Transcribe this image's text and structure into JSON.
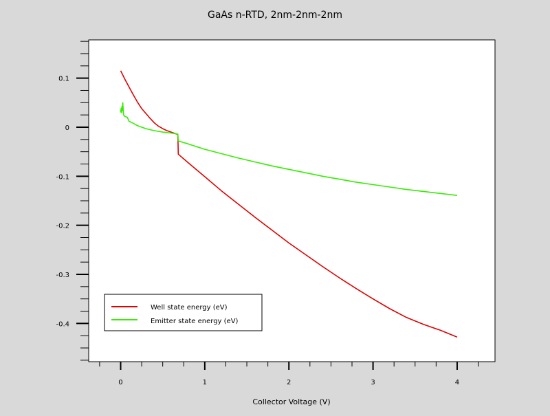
{
  "chart_data": {
    "type": "line",
    "title": "GaAs n-RTD, 2nm-2nm-2nm",
    "xlabel": "Collector Voltage (V)",
    "ylabel": "",
    "xlim": [
      -0.38,
      4.45
    ],
    "ylim": [
      -0.478,
      0.178
    ],
    "x_ticks": [
      0,
      1,
      2,
      3,
      4
    ],
    "x_tick_labels": [
      "0",
      "1",
      "2",
      "3",
      "4"
    ],
    "x_minor_step": 0.25,
    "y_ticks": [
      0.1,
      0,
      -0.1,
      -0.2,
      -0.3,
      -0.4
    ],
    "y_tick_labels": [
      "0.1",
      "0",
      "-0.1",
      "-0.2",
      "-0.3",
      "-0.4"
    ],
    "y_minor_step": 0.025,
    "grid": false,
    "legend_position": "bottom-left",
    "series": [
      {
        "name": "Well state energy (eV)",
        "color": "#e00000",
        "points": [
          [
            0,
            0.115
          ],
          [
            0.05,
            0.098
          ],
          [
            0.1,
            0.082
          ],
          [
            0.15,
            0.066
          ],
          [
            0.2,
            0.051
          ],
          [
            0.25,
            0.038
          ],
          [
            0.3,
            0.028
          ],
          [
            0.35,
            0.018
          ],
          [
            0.4,
            0.009
          ],
          [
            0.45,
            0.002
          ],
          [
            0.5,
            -0.003
          ],
          [
            0.55,
            -0.007
          ],
          [
            0.6,
            -0.01
          ],
          [
            0.65,
            -0.013
          ],
          [
            0.68,
            -0.015
          ],
          [
            0.685,
            -0.055
          ],
          [
            0.8,
            -0.072
          ],
          [
            1.0,
            -0.101
          ],
          [
            1.2,
            -0.13
          ],
          [
            1.4,
            -0.157
          ],
          [
            1.6,
            -0.184
          ],
          [
            1.8,
            -0.21
          ],
          [
            2.0,
            -0.236
          ],
          [
            2.2,
            -0.26
          ],
          [
            2.4,
            -0.284
          ],
          [
            2.6,
            -0.307
          ],
          [
            2.8,
            -0.329
          ],
          [
            3.0,
            -0.35
          ],
          [
            3.2,
            -0.37
          ],
          [
            3.4,
            -0.388
          ],
          [
            3.6,
            -0.402
          ],
          [
            3.8,
            -0.414
          ],
          [
            4.0,
            -0.428
          ]
        ]
      },
      {
        "name": "Emitter state energy (eV)",
        "color": "#33ee00",
        "points": [
          [
            0,
            0.03
          ],
          [
            0.005,
            0.038
          ],
          [
            0.01,
            0.03
          ],
          [
            0.015,
            0.042
          ],
          [
            0.02,
            0.034
          ],
          [
            0.025,
            0.05
          ],
          [
            0.03,
            0.036
          ],
          [
            0.035,
            0.025
          ],
          [
            0.05,
            0.022
          ],
          [
            0.08,
            0.02
          ],
          [
            0.1,
            0.012
          ],
          [
            0.15,
            0.008
          ],
          [
            0.2,
            0.003
          ],
          [
            0.3,
            -0.003
          ],
          [
            0.4,
            -0.007
          ],
          [
            0.5,
            -0.01
          ],
          [
            0.6,
            -0.012
          ],
          [
            0.68,
            -0.014
          ],
          [
            0.685,
            -0.028
          ],
          [
            0.8,
            -0.034
          ],
          [
            1.0,
            -0.045
          ],
          [
            1.2,
            -0.054
          ],
          [
            1.4,
            -0.063
          ],
          [
            1.6,
            -0.071
          ],
          [
            1.8,
            -0.079
          ],
          [
            2.0,
            -0.086
          ],
          [
            2.2,
            -0.093
          ],
          [
            2.4,
            -0.1
          ],
          [
            2.6,
            -0.106
          ],
          [
            2.8,
            -0.112
          ],
          [
            3.0,
            -0.117
          ],
          [
            3.2,
            -0.122
          ],
          [
            3.4,
            -0.127
          ],
          [
            3.6,
            -0.131
          ],
          [
            3.8,
            -0.135
          ],
          [
            4.0,
            -0.139
          ]
        ]
      }
    ]
  }
}
